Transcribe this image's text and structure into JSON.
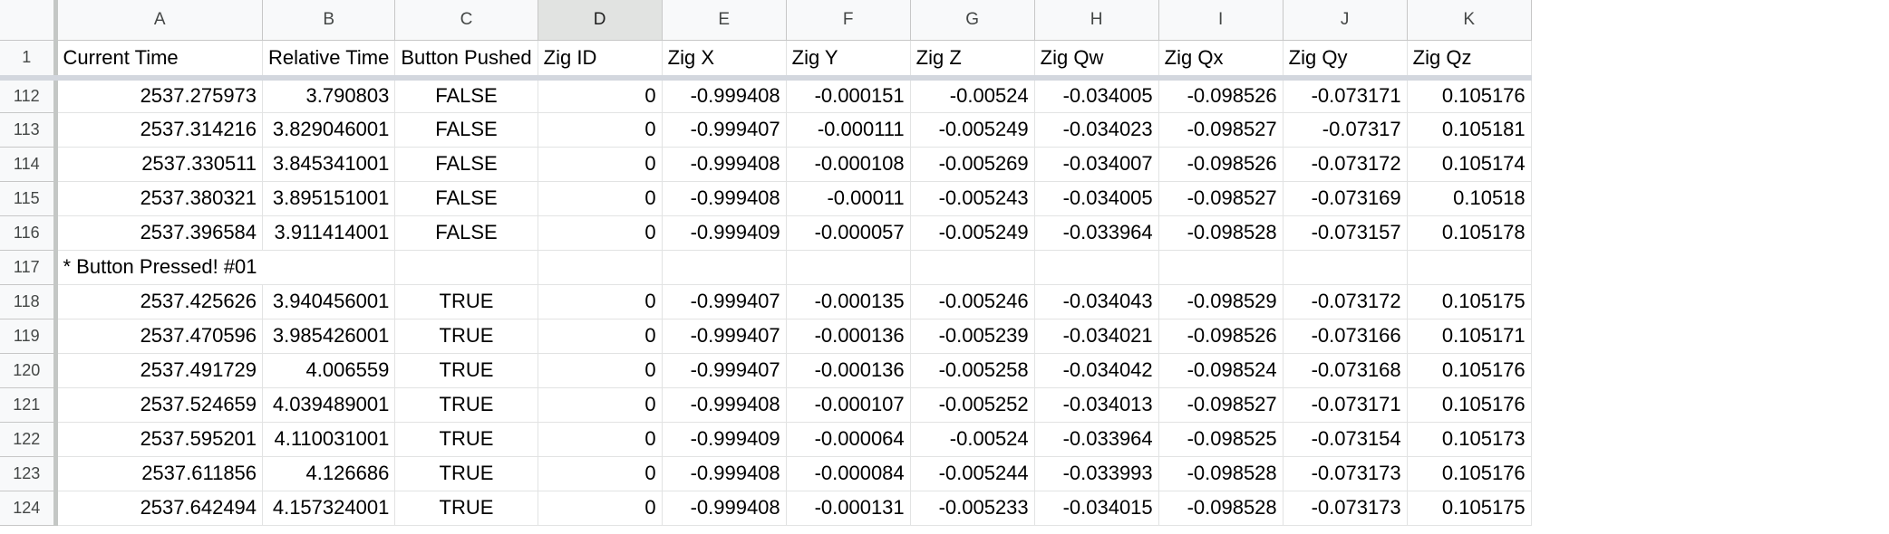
{
  "columns": [
    "A",
    "B",
    "C",
    "D",
    "E",
    "F",
    "G",
    "H",
    "I",
    "J",
    "K"
  ],
  "selected_column": "D",
  "header_row": {
    "number": "1",
    "cells": [
      "Current Time",
      "Relative Time",
      "Button Pushed",
      "Zig ID",
      "Zig X",
      "Zig Y",
      "Zig Z",
      "Zig Qw",
      "Zig Qx",
      "Zig Qy",
      "Zig Qz"
    ]
  },
  "rows": [
    {
      "n": "112",
      "cells": [
        "2537.275973",
        "3.790803",
        "FALSE",
        "0",
        "-0.999408",
        "-0.000151",
        "-0.00524",
        "-0.034005",
        "-0.098526",
        "-0.073171",
        "0.105176"
      ]
    },
    {
      "n": "113",
      "cells": [
        "2537.314216",
        "3.829046001",
        "FALSE",
        "0",
        "-0.999407",
        "-0.000111",
        "-0.005249",
        "-0.034023",
        "-0.098527",
        "-0.07317",
        "0.105181"
      ]
    },
    {
      "n": "114",
      "cells": [
        "2537.330511",
        "3.845341001",
        "FALSE",
        "0",
        "-0.999408",
        "-0.000108",
        "-0.005269",
        "-0.034007",
        "-0.098526",
        "-0.073172",
        "0.105174"
      ]
    },
    {
      "n": "115",
      "cells": [
        "2537.380321",
        "3.895151001",
        "FALSE",
        "0",
        "-0.999408",
        "-0.00011",
        "-0.005243",
        "-0.034005",
        "-0.098527",
        "-0.073169",
        "0.10518"
      ]
    },
    {
      "n": "116",
      "cells": [
        "2537.396584",
        "3.911414001",
        "FALSE",
        "0",
        "-0.999409",
        "-0.000057",
        "-0.005249",
        "-0.033964",
        "-0.098528",
        "-0.073157",
        "0.105178"
      ]
    },
    {
      "n": "117",
      "note": "* Button Pressed! #01"
    },
    {
      "n": "118",
      "cells": [
        "2537.425626",
        "3.940456001",
        "TRUE",
        "0",
        "-0.999407",
        "-0.000135",
        "-0.005246",
        "-0.034043",
        "-0.098529",
        "-0.073172",
        "0.105175"
      ]
    },
    {
      "n": "119",
      "cells": [
        "2537.470596",
        "3.985426001",
        "TRUE",
        "0",
        "-0.999407",
        "-0.000136",
        "-0.005239",
        "-0.034021",
        "-0.098526",
        "-0.073166",
        "0.105171"
      ]
    },
    {
      "n": "120",
      "cells": [
        "2537.491729",
        "4.006559",
        "TRUE",
        "0",
        "-0.999407",
        "-0.000136",
        "-0.005258",
        "-0.034042",
        "-0.098524",
        "-0.073168",
        "0.105176"
      ]
    },
    {
      "n": "121",
      "cells": [
        "2537.524659",
        "4.039489001",
        "TRUE",
        "0",
        "-0.999408",
        "-0.000107",
        "-0.005252",
        "-0.034013",
        "-0.098527",
        "-0.073171",
        "0.105176"
      ]
    },
    {
      "n": "122",
      "cells": [
        "2537.595201",
        "4.110031001",
        "TRUE",
        "0",
        "-0.999409",
        "-0.000064",
        "-0.00524",
        "-0.033964",
        "-0.098525",
        "-0.073154",
        "0.105173"
      ]
    },
    {
      "n": "123",
      "cells": [
        "2537.611856",
        "4.126686",
        "TRUE",
        "0",
        "-0.999408",
        "-0.000084",
        "-0.005244",
        "-0.033993",
        "-0.098528",
        "-0.073173",
        "0.105176"
      ]
    },
    {
      "n": "124",
      "cells": [
        "2537.642494",
        "4.157324001",
        "TRUE",
        "0",
        "-0.999408",
        "-0.000131",
        "-0.005233",
        "-0.034015",
        "-0.098528",
        "-0.073173",
        "0.105175"
      ]
    }
  ]
}
